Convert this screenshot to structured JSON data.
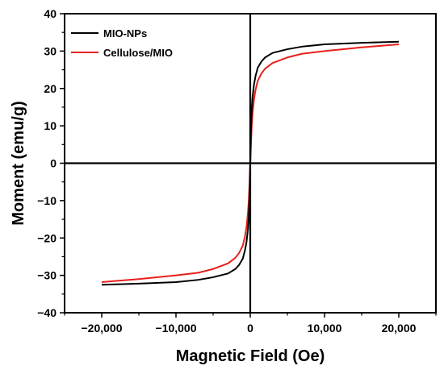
{
  "chart_data": {
    "type": "line",
    "title": "",
    "xlabel": "Magnetic Field (Oe)",
    "ylabel": "Moment (emu/g)",
    "xlim": [
      -25000,
      25000
    ],
    "ylim": [
      -40,
      40
    ],
    "x_ticks": [
      -20000,
      -10000,
      0,
      10000,
      20000
    ],
    "x_tick_labels": [
      "−20,000",
      "−10,000",
      "0",
      "10,000",
      "20,000"
    ],
    "y_ticks": [
      -40,
      -30,
      -20,
      -10,
      0,
      10,
      20,
      30,
      40
    ],
    "y_tick_labels": [
      "−40",
      "−30",
      "−20",
      "−10",
      "0",
      "10",
      "20",
      "30",
      "40"
    ],
    "grid": false,
    "zero_lines": true,
    "legend_position": "top-left",
    "series": [
      {
        "name": "MIO-NPs",
        "color": "#000000",
        "x": [
          -20000,
          -15000,
          -10000,
          -7000,
          -5000,
          -3000,
          -2000,
          -1500,
          -1000,
          -700,
          -500,
          -300,
          -200,
          -100,
          -50,
          0,
          50,
          100,
          200,
          300,
          500,
          700,
          1000,
          1500,
          2000,
          3000,
          5000,
          7000,
          10000,
          15000,
          20000
        ],
        "y": [
          -32.5,
          -32.2,
          -31.8,
          -31.2,
          -30.5,
          -29.5,
          -28.3,
          -27.2,
          -25.5,
          -23.2,
          -21,
          -17.5,
          -14.5,
          -9,
          -5,
          0,
          5,
          9,
          14.5,
          17.5,
          21,
          23.2,
          25.5,
          27.2,
          28.3,
          29.5,
          30.5,
          31.2,
          31.8,
          32.2,
          32.5
        ]
      },
      {
        "name": "Cellulose/MIO",
        "color": "#e8201c",
        "x": [
          -20000,
          -15000,
          -10000,
          -7000,
          -5000,
          -3000,
          -2000,
          -1500,
          -1000,
          -700,
          -500,
          -300,
          -200,
          -100,
          -50,
          0,
          50,
          100,
          200,
          300,
          500,
          700,
          1000,
          1500,
          2000,
          3000,
          5000,
          7000,
          10000,
          15000,
          20000
        ],
        "y": [
          -31.8,
          -31,
          -30,
          -29.3,
          -28.3,
          -26.8,
          -25.3,
          -24,
          -22,
          -19.5,
          -17,
          -13,
          -10,
          -5.5,
          -2.5,
          0,
          2.5,
          5.5,
          10,
          13,
          17,
          19.5,
          22,
          24,
          25.3,
          26.8,
          28.3,
          29.3,
          30,
          31,
          31.8
        ]
      }
    ]
  }
}
